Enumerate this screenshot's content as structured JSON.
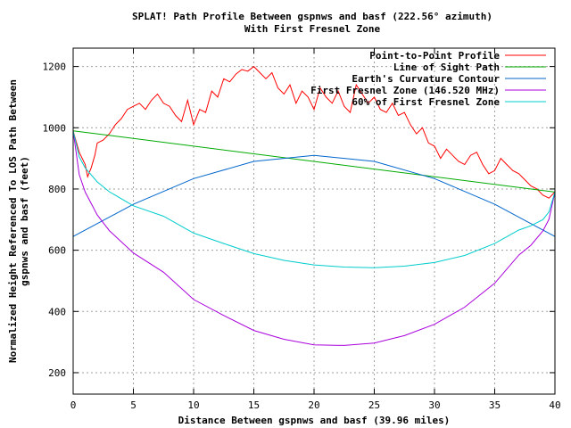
{
  "chart_data": {
    "type": "line",
    "title": "SPLAT! Path Profile Between gspnws and basf (222.56° azimuth)",
    "subtitle": "With First Fresnel Zone",
    "xlabel": "Distance Between gspnws and basf (39.96 miles)",
    "ylabel_line1": "Normalized Height Referenced To LOS Path Between",
    "ylabel_line2": "gspnws and basf (feet)",
    "xlim": [
      0,
      40
    ],
    "ylim": [
      130,
      1260
    ],
    "x_ticks": [
      0,
      5,
      10,
      15,
      20,
      25,
      30,
      35,
      40
    ],
    "x_tick_labels": [
      "0",
      "5",
      "10",
      "15",
      "20",
      "25",
      "30",
      "35",
      "40"
    ],
    "y_ticks": [
      200,
      400,
      600,
      800,
      1000,
      1200
    ],
    "y_tick_labels": [
      "200",
      "400",
      "600",
      "800",
      "1000",
      "1200"
    ],
    "grid": true,
    "legend_position": "top-right",
    "series": [
      {
        "name": "Point-to-Point Profile",
        "color": "#ff0000",
        "x": [
          0,
          0.5,
          1,
          1.2,
          1.5,
          1.8,
          2,
          2.5,
          3,
          3.5,
          4,
          4.5,
          5,
          5.5,
          6,
          6.5,
          7,
          7.5,
          8,
          8.5,
          9,
          9.5,
          10,
          10.5,
          11,
          11.5,
          12,
          12.5,
          13,
          13.5,
          14,
          14.5,
          15,
          15.5,
          16,
          16.5,
          17,
          17.5,
          18,
          18.5,
          19,
          19.5,
          20,
          20.5,
          21,
          21.5,
          22,
          22.5,
          23,
          23.5,
          24,
          24.5,
          25,
          25.5,
          26,
          26.5,
          27,
          27.5,
          28,
          28.5,
          29,
          29.5,
          30,
          30.5,
          31,
          31.5,
          32,
          32.5,
          33,
          33.5,
          34,
          34.5,
          35,
          35.5,
          36,
          36.5,
          37,
          37.5,
          38,
          38.5,
          39,
          39.5,
          40
        ],
        "y": [
          990,
          920,
          880,
          840,
          870,
          910,
          950,
          960,
          980,
          1010,
          1030,
          1060,
          1070,
          1080,
          1060,
          1090,
          1110,
          1080,
          1070,
          1040,
          1020,
          1090,
          1010,
          1060,
          1050,
          1120,
          1100,
          1160,
          1150,
          1175,
          1190,
          1185,
          1200,
          1180,
          1160,
          1180,
          1130,
          1110,
          1140,
          1080,
          1120,
          1100,
          1060,
          1130,
          1100,
          1080,
          1120,
          1070,
          1050,
          1140,
          1110,
          1080,
          1100,
          1060,
          1050,
          1080,
          1040,
          1050,
          1010,
          980,
          1000,
          950,
          940,
          900,
          930,
          910,
          890,
          880,
          910,
          920,
          880,
          850,
          860,
          900,
          880,
          860,
          850,
          830,
          810,
          800,
          780,
          770,
          790
        ]
      },
      {
        "name": "Line of Sight Path",
        "color": "#00aa00",
        "x": [
          0,
          40
        ],
        "y": [
          990,
          790
        ]
      },
      {
        "name": "Earth's Curvature Contour",
        "color": "#0066cc",
        "x": [
          0,
          5,
          10,
          15,
          20,
          25,
          30,
          35,
          40
        ],
        "y": [
          645,
          750,
          834,
          890,
          910,
          890,
          834,
          750,
          645
        ]
      },
      {
        "name": "First Fresnel Zone (146.520 MHz)",
        "color": "#aa00dd",
        "x": [
          0,
          0.5,
          1,
          2,
          3,
          5,
          7.5,
          10,
          12.5,
          15,
          17.5,
          20,
          22.5,
          25,
          27.5,
          30,
          32.5,
          35,
          37,
          38,
          39,
          39.5,
          40
        ],
        "y": [
          990,
          847,
          790,
          715,
          664,
          591,
          528,
          439,
          387,
          338,
          309,
          291,
          289,
          297,
          321,
          358,
          414,
          492,
          584,
          616,
          663,
          701,
          790
        ]
      },
      {
        "name": "60% of First Fresnel Zone",
        "color": "#00cccc",
        "x": [
          0,
          0.5,
          1,
          2,
          3,
          5,
          7.5,
          10,
          12.5,
          15,
          17.5,
          20,
          22.5,
          25,
          27.5,
          30,
          32.5,
          35,
          37,
          38,
          39,
          39.5,
          40
        ],
        "y": [
          990,
          905,
          869,
          823,
          791,
          745,
          711,
          656,
          622,
          589,
          567,
          552,
          545,
          543,
          548,
          560,
          583,
          622,
          666,
          680,
          700,
          725,
          790
        ]
      }
    ]
  }
}
